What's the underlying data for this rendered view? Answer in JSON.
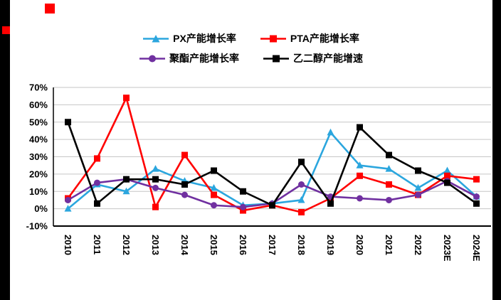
{
  "page": {
    "background_color": "#000000",
    "panel_color": "#FFFFFF",
    "decoration_red_square_color": "#FF0000"
  },
  "chart_data": {
    "type": "line",
    "title": "",
    "xlabel": "",
    "ylabel": "",
    "ylim": [
      -10,
      70
    ],
    "grid": true,
    "grid_color": "#C6C6C6",
    "legend_position": "top",
    "y_ticks": [
      "70%",
      "60%",
      "50%",
      "40%",
      "30%",
      "20%",
      "10%",
      "0%",
      "-10%"
    ],
    "categories": [
      "2010",
      "2011",
      "2012",
      "2013",
      "2014",
      "2015",
      "2016",
      "2017",
      "2018",
      "2019",
      "2020",
      "2021",
      "2022",
      "2023E",
      "2024E"
    ],
    "series": [
      {
        "name": "PX产能增长率",
        "color": "#2BA6DE",
        "marker": "triangle",
        "values": [
          0,
          14,
          10,
          23,
          16,
          12,
          2,
          3,
          5,
          44,
          25,
          23,
          12,
          22,
          7
        ]
      },
      {
        "name": "PTA产能增长率",
        "color": "#FF0000",
        "marker": "square",
        "values": [
          6,
          29,
          64,
          1,
          31,
          8,
          -1,
          2,
          -2,
          6,
          19,
          14,
          8,
          19,
          17
        ]
      },
      {
        "name": "聚酯产能增长率",
        "color": "#7030A0",
        "marker": "circle",
        "values": [
          5,
          15,
          17,
          12,
          8,
          2,
          1,
          3,
          14,
          7,
          6,
          5,
          8,
          16,
          7
        ]
      },
      {
        "name": "乙二醇产能增速",
        "color": "#000000",
        "marker": "square",
        "values": [
          50,
          3,
          17,
          17,
          14,
          22,
          10,
          2,
          27,
          3,
          47,
          31,
          22,
          15,
          3
        ]
      }
    ]
  }
}
